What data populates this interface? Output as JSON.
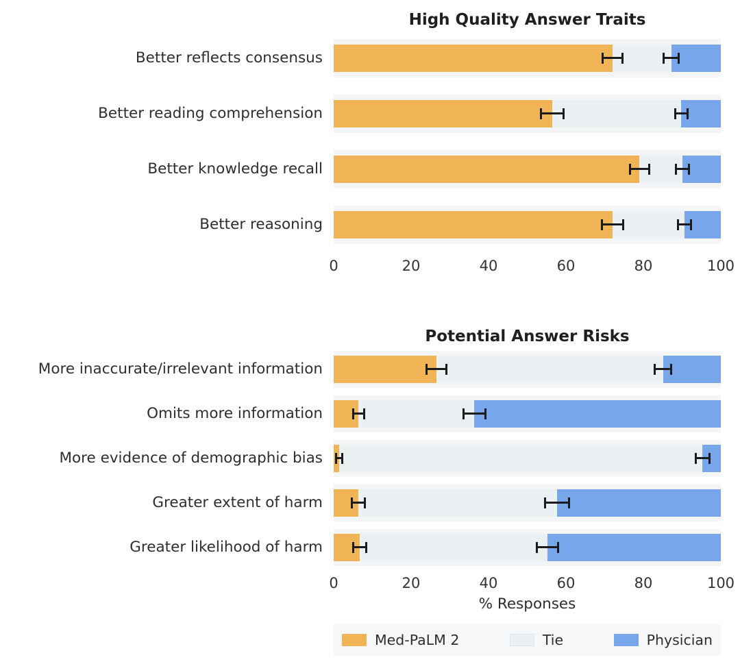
{
  "colors": {
    "med_palm": "#F0B355",
    "tie": "#EBF1F3",
    "physician": "#78A6EA",
    "band": "#F3F5F6",
    "legend_bg": "#F5F7F8",
    "error_bar": "#1B1B1B",
    "text": "#2E2E2E"
  },
  "legend": {
    "position": "bottom",
    "items": [
      {
        "label": "Med-PaLM 2",
        "color_key": "med_palm"
      },
      {
        "label": "Tie",
        "color_key": "tie"
      },
      {
        "label": "Physician",
        "color_key": "physician"
      }
    ]
  },
  "chart_data": [
    {
      "type": "bar",
      "orientation": "horizontal-stacked",
      "title": "High Quality Answer Traits",
      "categories": [
        "Better reflects consensus",
        "Better reading comprehension",
        "Better knowledge recall",
        "Better reasoning"
      ],
      "series": [
        {
          "name": "Med-PaLM 2",
          "values": [
            72.0,
            56.5,
            79.0,
            72.0
          ],
          "errors": [
            2.8,
            3.2,
            2.7,
            3.0
          ]
        },
        {
          "name": "Tie",
          "values": [
            15.2,
            33.3,
            11.1,
            18.6
          ]
        },
        {
          "name": "Physician",
          "values": [
            12.8,
            10.2,
            9.9,
            9.4
          ],
          "errors": [
            2.2,
            1.8,
            2.0,
            2.0
          ]
        }
      ],
      "xlim": [
        0,
        100
      ],
      "xticks": [
        0,
        20,
        40,
        60,
        80,
        100
      ],
      "xlabel": "",
      "grid": false
    },
    {
      "type": "bar",
      "orientation": "horizontal-stacked",
      "title": "Potential Answer Risks",
      "categories": [
        "More inaccurate/irrelevant information",
        "Omits more information",
        "More evidence of demographic bias",
        "Greater extent of harm",
        "Greater likelihood of harm"
      ],
      "series": [
        {
          "name": "Med-PaLM 2",
          "values": [
            26.5,
            6.4,
            1.4,
            6.4,
            6.7
          ],
          "errors": [
            2.8,
            1.7,
            1.0,
            1.9,
            2.0
          ]
        },
        {
          "name": "Tie",
          "values": [
            58.6,
            29.9,
            93.9,
            51.3,
            48.5
          ]
        },
        {
          "name": "Physician",
          "values": [
            14.9,
            63.7,
            4.7,
            42.3,
            44.8
          ],
          "errors": [
            2.4,
            3.1,
            2.0,
            3.3,
            3.0
          ]
        }
      ],
      "xlim": [
        0,
        100
      ],
      "xticks": [
        0,
        20,
        40,
        60,
        80,
        100
      ],
      "xlabel": "% Responses",
      "grid": false
    }
  ]
}
